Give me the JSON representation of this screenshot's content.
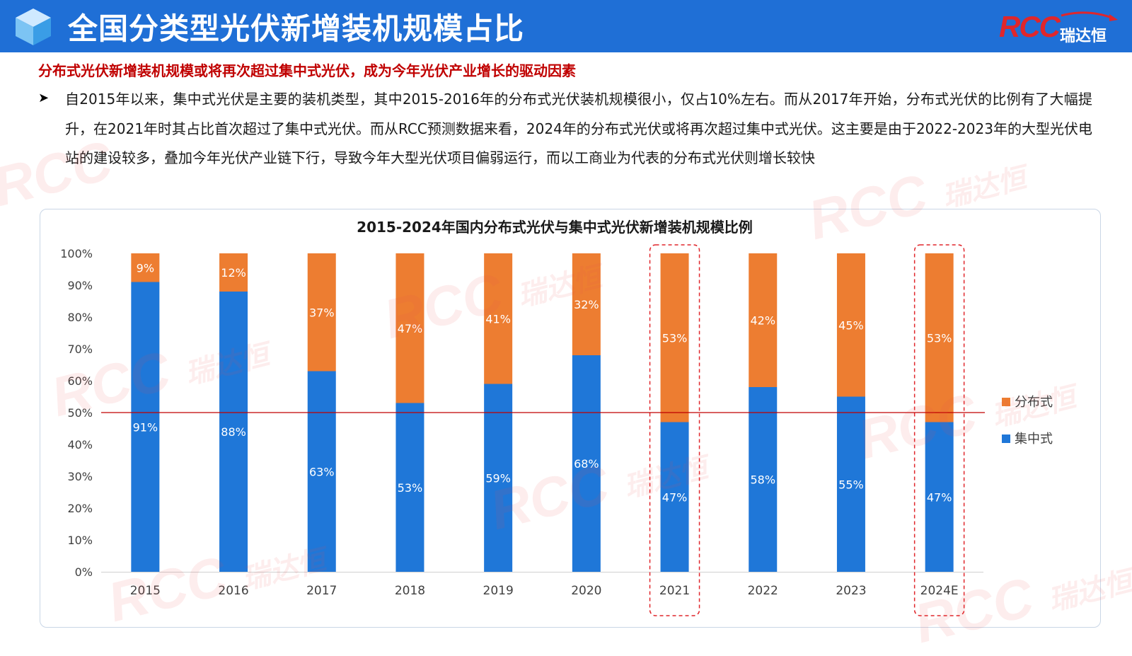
{
  "header": {
    "title": "全国分类型光伏新增装机规模占比",
    "logo_text": "RCC",
    "logo_subtext": "瑞达恒"
  },
  "subtitle": "分布式光伏新增装机规模或将再次超过集中式光伏，成为今年光伏产业增长的驱动因素",
  "paragraph": "自2015年以来，集中式光伏是主要的装机类型，其中2015-2016年的分布式光伏装机规模很小，仅占10%左右。而从2017年开始，分布式光伏的比例有了大幅提升，在2021年时其占比首次超过了集中式光伏。而从RCC预测数据来看，2024年的分布式光伏或将再次超过集中式光伏。这主要是由于2022-2023年的大型光伏电站的建设较多，叠加今年光伏产业链下行，导致今年大型光伏项目偏弱运行，而以工商业为代表的分布式光伏则增长较快",
  "watermark": {
    "text": "RCC",
    "subtext": "瑞达恒"
  },
  "colors": {
    "header_bg": "#1f6fd6",
    "distributed": "#ed7d31",
    "centralized": "#1f77d8",
    "subtitle_red": "#c00000",
    "reference_line": "#c00000",
    "highlight_box": "#e0262b"
  },
  "chart_data": {
    "type": "bar",
    "stacked": true,
    "percent": true,
    "title": "2015-2024年国内分布式光伏与集中式光伏新增装机规模比例",
    "categories": [
      "2015",
      "2016",
      "2017",
      "2018",
      "2019",
      "2020",
      "2021",
      "2022",
      "2023",
      "2024E"
    ],
    "series": [
      {
        "name": "集中式",
        "color": "#1f77d8",
        "values": [
          91,
          88,
          63,
          53,
          59,
          68,
          47,
          58,
          55,
          47
        ],
        "labels": [
          "91%",
          "88%",
          "63%",
          "53%",
          "59%",
          "68%",
          "47%",
          "58%",
          "55%",
          "47%"
        ]
      },
      {
        "name": "分布式",
        "color": "#ed7d31",
        "values": [
          9,
          12,
          37,
          47,
          41,
          32,
          53,
          42,
          45,
          53
        ],
        "labels": [
          "9%",
          "12%",
          "37%",
          "47%",
          "41%",
          "32%",
          "53%",
          "42%",
          "45%",
          "53%"
        ]
      }
    ],
    "y_ticks": [
      "0%",
      "10%",
      "20%",
      "30%",
      "40%",
      "50%",
      "60%",
      "70%",
      "80%",
      "90%",
      "100%"
    ],
    "ylim": [
      0,
      100
    ],
    "reference_line": 50,
    "highlighted_categories": [
      "2021",
      "2024E"
    ],
    "legend": {
      "position": "right",
      "entries": [
        "分布式",
        "集中式"
      ]
    },
    "grid": false
  }
}
